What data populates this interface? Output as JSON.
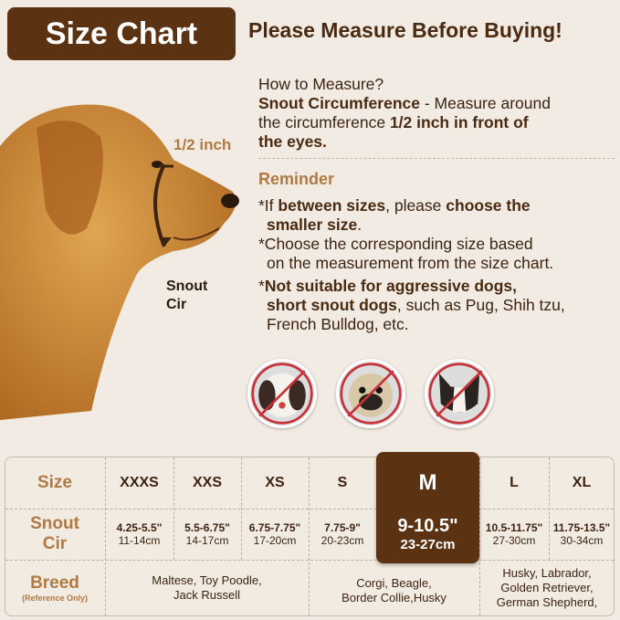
{
  "title": "Size Chart",
  "headline": "Please Measure Before Buying!",
  "measure": {
    "question": "How to Measure?",
    "line1_bold": "Snout Circumference",
    "line1_rest": " - Measure around",
    "line2_plain": "the circumference ",
    "line2_bold": "1/2 inch in front of",
    "line3_bold": "the eyes."
  },
  "reminder": {
    "title": "Reminder",
    "r1_a": "*If ",
    "r1_b": "between sizes",
    "r1_c": ", please ",
    "r1_d": "choose the",
    "r1_e": "smaller size",
    "r1_f": ".",
    "r2_a": "*Choose the corresponding size based",
    "r2_b": "on the measurement from the size chart.",
    "r3_a": "*",
    "r3_b": "Not suitable for aggressive dogs,",
    "r3_c": "short snout dogs",
    "r3_d": ", such as Pug, Shih tzu,",
    "r3_e": "French Bulldog, etc."
  },
  "diagram": {
    "half_inch": "1/2 inch",
    "snout_label_1": "Snout",
    "snout_label_2": "Cir"
  },
  "not_suitable_icons": [
    "shih-tzu-crossed-icon",
    "pug-crossed-icon",
    "french-bulldog-crossed-icon"
  ],
  "table": {
    "row_labels": {
      "size": "Size",
      "snout_1": "Snout",
      "snout_2": "Cir",
      "breed": "Breed",
      "breed_note": "(Reference Only)"
    },
    "sizes": [
      {
        "size": "XXXS",
        "inch": "4.25-5.5\"",
        "cm": "11-14cm"
      },
      {
        "size": "XXS",
        "inch": "5.5-6.75\"",
        "cm": "14-17cm"
      },
      {
        "size": "XS",
        "inch": "6.75-7.75\"",
        "cm": "17-20cm"
      },
      {
        "size": "S",
        "inch": "7.75-9\"",
        "cm": "20-23cm"
      },
      {
        "size": "M",
        "inch": "9-10.5\"",
        "cm": "23-27cm"
      },
      {
        "size": "L",
        "inch": "10.5-11.75\"",
        "cm": "27-30cm"
      },
      {
        "size": "XL",
        "inch": "11.75-13.5\"",
        "cm": "30-34cm"
      }
    ],
    "highlighted_size": "M",
    "breeds": [
      {
        "l1": "Maltese, Toy Poodle,",
        "l2": "Jack Russell"
      },
      {
        "l1": "Corgi, Beagle,",
        "l2": "Border Collie,Husky"
      },
      {
        "l1": "Husky, Labrador,",
        "l2": "Golden Retriever,",
        "l3": "German Shepherd,"
      }
    ]
  },
  "colors": {
    "brand_brown": "#5b3312",
    "accent_tan": "#b07a45",
    "background": "#f1ebe3"
  }
}
